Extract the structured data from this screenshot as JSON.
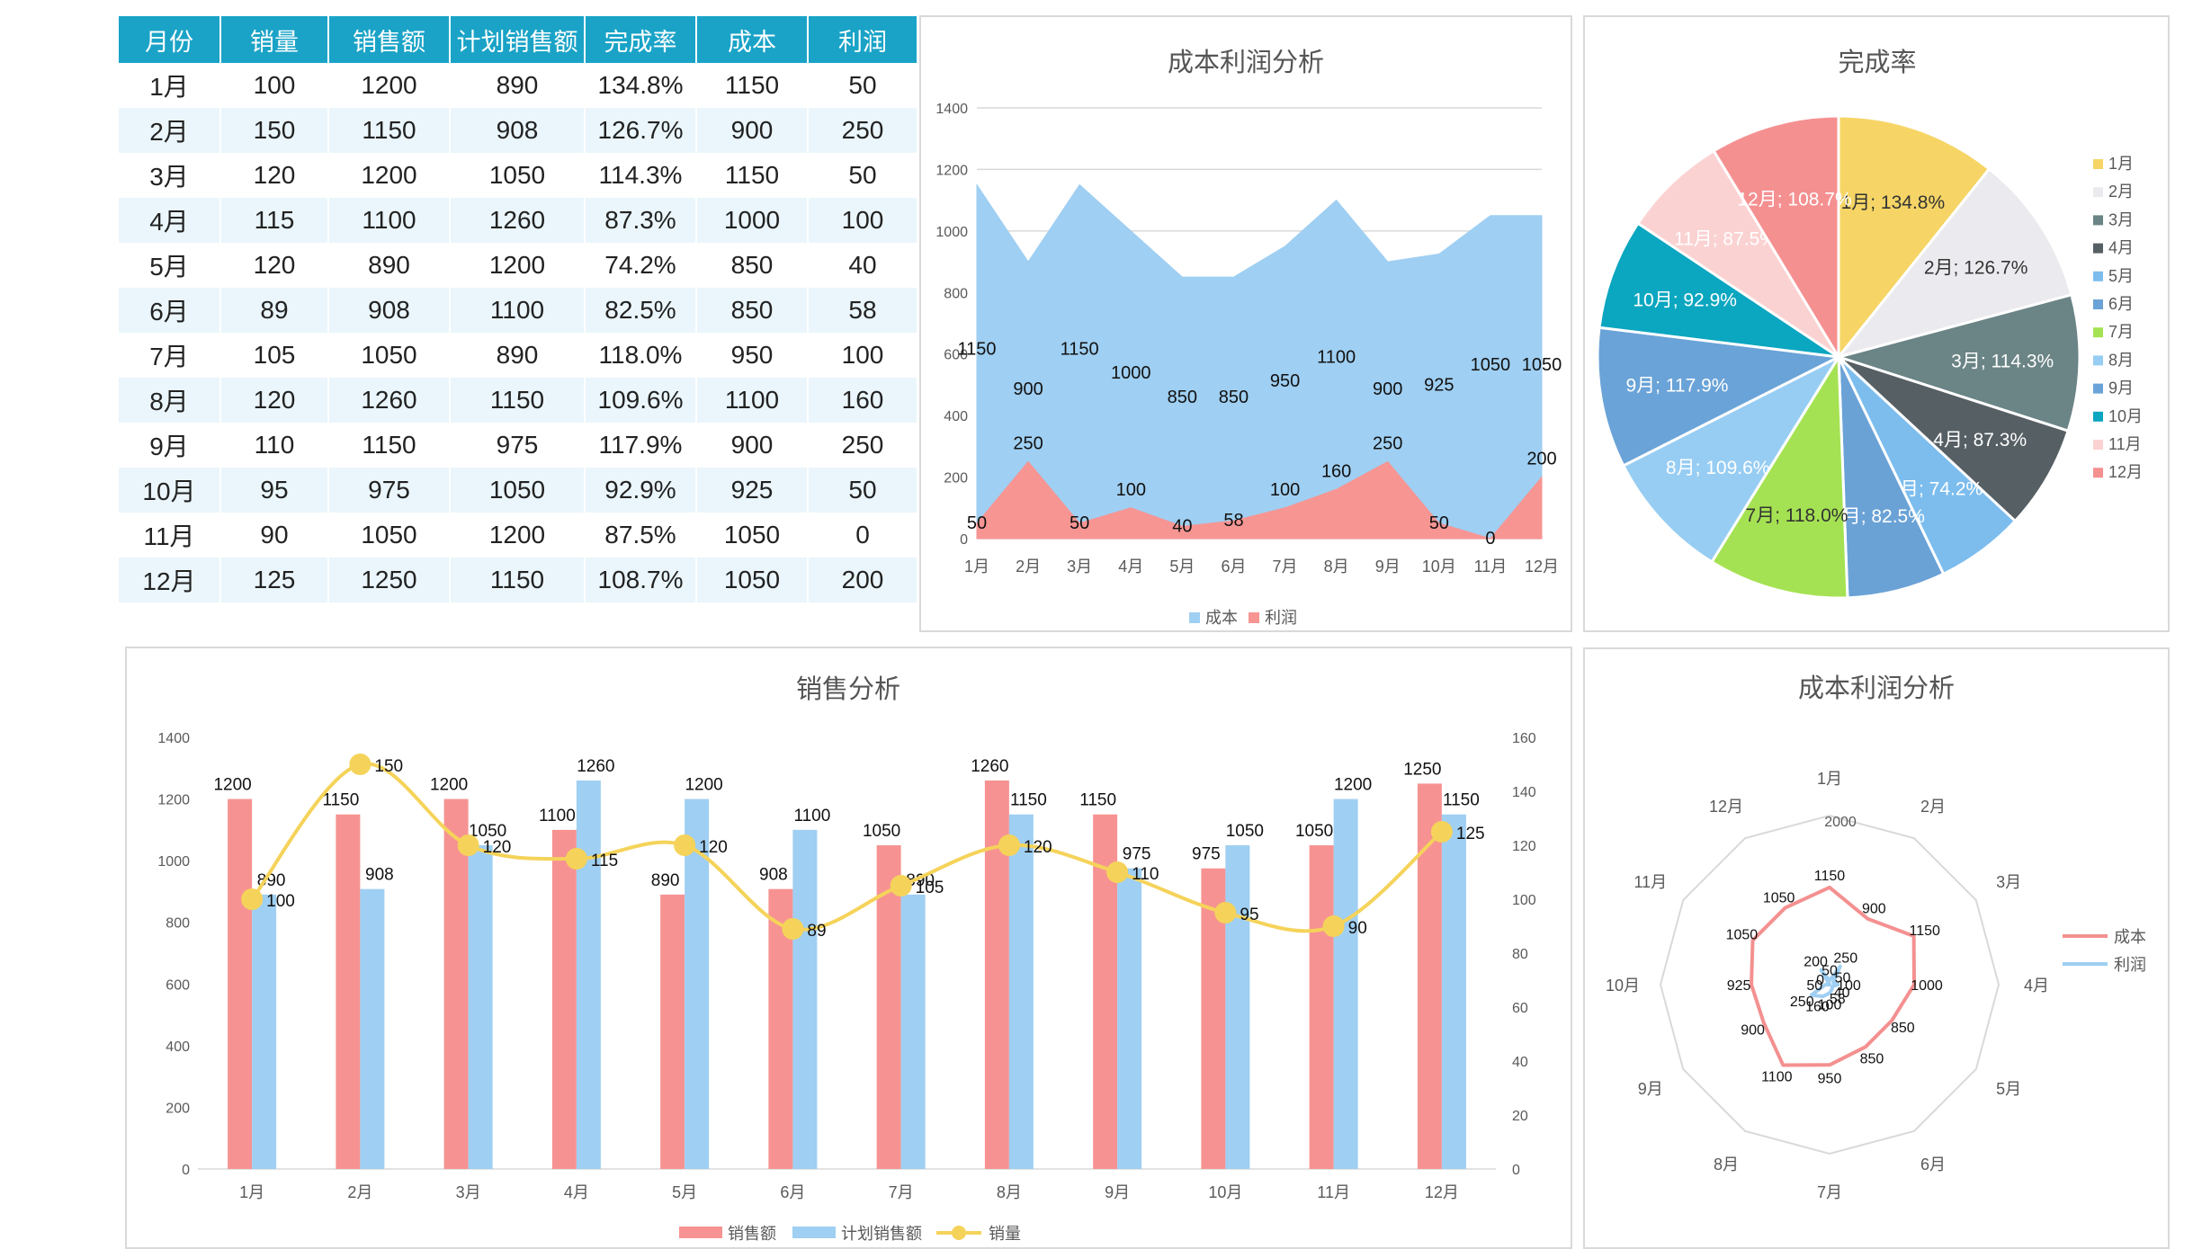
{
  "table": {
    "headers": [
      "月份",
      "销量",
      "销售额",
      "计划销售额",
      "完成率",
      "成本",
      "利润"
    ],
    "rows": [
      [
        "1月",
        "100",
        "1200",
        "890",
        "134.8%",
        "1150",
        "50"
      ],
      [
        "2月",
        "150",
        "1150",
        "908",
        "126.7%",
        "900",
        "250"
      ],
      [
        "3月",
        "120",
        "1200",
        "1050",
        "114.3%",
        "1150",
        "50"
      ],
      [
        "4月",
        "115",
        "1100",
        "1260",
        "87.3%",
        "1000",
        "100"
      ],
      [
        "5月",
        "120",
        "890",
        "1200",
        "74.2%",
        "850",
        "40"
      ],
      [
        "6月",
        "89",
        "908",
        "1100",
        "82.5%",
        "850",
        "58"
      ],
      [
        "7月",
        "105",
        "1050",
        "890",
        "118.0%",
        "950",
        "100"
      ],
      [
        "8月",
        "120",
        "1260",
        "1150",
        "109.6%",
        "1100",
        "160"
      ],
      [
        "9月",
        "110",
        "1150",
        "975",
        "117.9%",
        "900",
        "250"
      ],
      [
        "10月",
        "95",
        "975",
        "1050",
        "92.9%",
        "925",
        "50"
      ],
      [
        "11月",
        "90",
        "1050",
        "1200",
        "87.5%",
        "1050",
        "0"
      ],
      [
        "12月",
        "125",
        "1250",
        "1150",
        "108.7%",
        "1050",
        "200"
      ]
    ]
  },
  "chart_data": [
    {
      "type": "area",
      "title": "成本利润分析",
      "categories": [
        "1月",
        "2月",
        "3月",
        "4月",
        "5月",
        "6月",
        "7月",
        "8月",
        "9月",
        "10月",
        "11月",
        "12月"
      ],
      "ylim": [
        0,
        1400
      ],
      "yticks": [
        "0",
        "200",
        "400",
        "600",
        "800",
        "1000",
        "1200",
        "1400"
      ],
      "series": [
        {
          "name": "成本",
          "values": [
            1150,
            900,
            1150,
            1000,
            850,
            850,
            950,
            1100,
            900,
            925,
            1050,
            1050
          ],
          "color": "#9fcff2"
        },
        {
          "name": "利润",
          "values": [
            50,
            250,
            50,
            100,
            40,
            58,
            100,
            160,
            250,
            50,
            0,
            200
          ],
          "color": "#f79593"
        }
      ],
      "legend": "bottom",
      "grid": true
    },
    {
      "type": "pie",
      "title": "完成率",
      "slices": [
        {
          "label": "1月",
          "value": 134.8,
          "text": "1月; 134.8%",
          "color": "#f6d566"
        },
        {
          "label": "2月",
          "value": 126.7,
          "text": "2月; 126.7%",
          "color": "#ebeaee"
        },
        {
          "label": "3月",
          "value": 114.3,
          "text": "3月; 114.3%",
          "color": "#6b8485"
        },
        {
          "label": "4月",
          "value": 87.3,
          "text": "4月; 87.3%",
          "color": "#565f64"
        },
        {
          "label": "5月",
          "value": 74.2,
          "text": "5月; 74.2%",
          "color": "#7cbdee"
        },
        {
          "label": "6月",
          "value": 82.5,
          "text": "6月; 82.5%",
          "color": "#6aa2d6"
        },
        {
          "label": "7月",
          "value": 118.0,
          "text": "7月; 118.0%",
          "color": "#a5e253"
        },
        {
          "label": "8月",
          "value": 109.6,
          "text": "8月; 109.6%",
          "color": "#97cdf3"
        },
        {
          "label": "9月",
          "value": 117.9,
          "text": "9月; 117.9%",
          "color": "#6aa3d7"
        },
        {
          "label": "10月",
          "value": 92.9,
          "text": "10月; 92.9%",
          "color": "#0ba6c0"
        },
        {
          "label": "11月",
          "value": 87.5,
          "text": "11月; 87.5%",
          "color": "#fbd2d2"
        },
        {
          "label": "12月",
          "value": 108.7,
          "text": "12月; 108.7%",
          "color": "#f59091"
        }
      ],
      "legend": "right"
    },
    {
      "type": "bar",
      "title": "销售分析",
      "categories": [
        "1月",
        "2月",
        "3月",
        "4月",
        "5月",
        "6月",
        "7月",
        "8月",
        "9月",
        "10月",
        "11月",
        "12月"
      ],
      "ylim": [
        0,
        1400
      ],
      "yticks": [
        "0",
        "200",
        "400",
        "600",
        "800",
        "1000",
        "1200",
        "1400"
      ],
      "y2lim": [
        0,
        160
      ],
      "y2ticks": [
        "0",
        "20",
        "40",
        "60",
        "80",
        "100",
        "120",
        "140",
        "160"
      ],
      "series": [
        {
          "name": "销售额",
          "type": "bar",
          "values": [
            1200,
            1150,
            1200,
            1100,
            890,
            908,
            1050,
            1260,
            1150,
            975,
            1050,
            1250
          ],
          "color": "#f69392"
        },
        {
          "name": "计划销售额",
          "type": "bar",
          "values": [
            890,
            908,
            1050,
            1260,
            1200,
            1100,
            890,
            1150,
            975,
            1050,
            1200,
            1150
          ],
          "color": "#9fcff2"
        },
        {
          "name": "销量",
          "type": "line",
          "axis": "secondary",
          "smooth": true,
          "values": [
            100,
            150,
            120,
            115,
            120,
            89,
            105,
            120,
            110,
            95,
            90,
            125
          ],
          "color": "#f5d35a"
        }
      ],
      "legend": "bottom"
    },
    {
      "type": "radar",
      "title": "成本利润分析",
      "categories": [
        "1月",
        "2月",
        "3月",
        "4月",
        "5月",
        "6月",
        "7月",
        "8月",
        "9月",
        "10月",
        "11月",
        "12月"
      ],
      "rmax": 2000,
      "rtick": "2000",
      "series": [
        {
          "name": "成本",
          "values": [
            1150,
            900,
            1150,
            1000,
            850,
            850,
            950,
            1100,
            900,
            925,
            1050,
            1050
          ],
          "color": "#f49090"
        },
        {
          "name": "利润",
          "values": [
            50,
            250,
            50,
            100,
            40,
            58,
            100,
            160,
            250,
            50,
            0,
            200
          ],
          "color": "#9fcff2"
        }
      ],
      "legend": "right"
    }
  ]
}
